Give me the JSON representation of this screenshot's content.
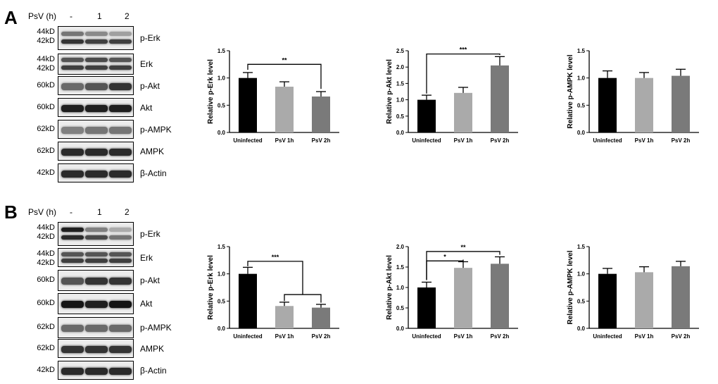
{
  "panels": [
    {
      "letter": "A",
      "header": {
        "label": "PsV (h)",
        "lanes": [
          "-",
          "1",
          "2"
        ]
      },
      "blots": [
        {
          "name": "p-Erk",
          "kd": [
            "44kD",
            "42kD"
          ],
          "double": true,
          "bands": [
            [
              0.55,
              0.85
            ],
            [
              0.45,
              0.8
            ],
            [
              0.35,
              0.8
            ]
          ]
        },
        {
          "name": "Erk",
          "kd": [
            "44kD",
            "42kD"
          ],
          "double": true,
          "bands": [
            [
              0.7,
              0.8
            ],
            [
              0.75,
              0.8
            ],
            [
              0.7,
              0.8
            ]
          ]
        },
        {
          "name": "p-Akt",
          "kd": [
            "60kD"
          ],
          "double": false,
          "bands": [
            [
              0.6
            ],
            [
              0.7
            ],
            [
              0.85
            ]
          ]
        },
        {
          "name": "Akt",
          "kd": [
            "60kD"
          ],
          "double": false,
          "bands": [
            [
              0.95
            ],
            [
              0.95
            ],
            [
              0.95
            ]
          ]
        },
        {
          "name": "p-AMPK",
          "kd": [
            "62kD"
          ],
          "double": false,
          "bands": [
            [
              0.5
            ],
            [
              0.55
            ],
            [
              0.55
            ]
          ]
        },
        {
          "name": "AMPK",
          "kd": [
            "62kD"
          ],
          "double": false,
          "bands": [
            [
              0.9
            ],
            [
              0.9
            ],
            [
              0.9
            ]
          ]
        },
        {
          "name": "β-Actin",
          "kd": [
            "42kD"
          ],
          "double": false,
          "bands": [
            [
              0.9
            ],
            [
              0.9
            ],
            [
              0.9
            ]
          ]
        }
      ]
    },
    {
      "letter": "B",
      "header": {
        "label": "PsV (h)",
        "lanes": [
          "-",
          "1",
          "2"
        ]
      },
      "blots": [
        {
          "name": "p-Erk",
          "kd": [
            "44kD",
            "42kD"
          ],
          "double": true,
          "bands": [
            [
              0.95,
              0.9
            ],
            [
              0.5,
              0.75
            ],
            [
              0.3,
              0.55
            ]
          ]
        },
        {
          "name": "Erk",
          "kd": [
            "44kD",
            "42kD"
          ],
          "double": true,
          "bands": [
            [
              0.7,
              0.8
            ],
            [
              0.7,
              0.8
            ],
            [
              0.7,
              0.8
            ]
          ]
        },
        {
          "name": "p-Akt",
          "kd": [
            "60kD"
          ],
          "double": false,
          "bands": [
            [
              0.7
            ],
            [
              0.85
            ],
            [
              0.85
            ]
          ]
        },
        {
          "name": "Akt",
          "kd": [
            "60kD"
          ],
          "double": false,
          "bands": [
            [
              1.0
            ],
            [
              0.95
            ],
            [
              1.0
            ]
          ]
        },
        {
          "name": "p-AMPK",
          "kd": [
            "62kD"
          ],
          "double": false,
          "bands": [
            [
              0.6
            ],
            [
              0.6
            ],
            [
              0.6
            ]
          ]
        },
        {
          "name": "AMPK",
          "kd": [
            "62kD"
          ],
          "double": false,
          "bands": [
            [
              0.85
            ],
            [
              0.85
            ],
            [
              0.85
            ]
          ]
        },
        {
          "name": "β-Actin",
          "kd": [
            "42kD"
          ],
          "double": false,
          "bands": [
            [
              0.9
            ],
            [
              0.9
            ],
            [
              0.9
            ]
          ]
        }
      ]
    }
  ],
  "chart_data": [
    {
      "id": "A-perk",
      "type": "bar",
      "categories": [
        "Uninfected",
        "PsV 1h",
        "PsV 2h"
      ],
      "values": [
        1.0,
        0.84,
        0.66
      ],
      "errors": [
        0.1,
        0.09,
        0.09
      ],
      "ylabel": "Relative p-Erk level",
      "ylim": [
        0,
        1.5
      ],
      "yticks": [
        "0.0",
        "0.5",
        "1.0",
        "1.5"
      ],
      "colors": [
        "#000000",
        "#aaaaaa",
        "#7a7a7a"
      ],
      "sig": [
        {
          "from": 0,
          "to": 2,
          "label": "**",
          "level": 1.25
        }
      ]
    },
    {
      "id": "A-pakt",
      "type": "bar",
      "categories": [
        "Uninfected",
        "PsV 1h",
        "PsV 2h"
      ],
      "values": [
        1.0,
        1.21,
        2.05
      ],
      "errors": [
        0.14,
        0.17,
        0.27
      ],
      "ylabel": "Relative p-Akt level",
      "ylim": [
        0,
        2.5
      ],
      "yticks": [
        "0.0",
        "0.5",
        "1.0",
        "1.5",
        "2.0",
        "2.5"
      ],
      "colors": [
        "#000000",
        "#aaaaaa",
        "#7a7a7a"
      ],
      "sig": [
        {
          "from": 0,
          "to": 2,
          "label": "***",
          "level": 2.4
        }
      ]
    },
    {
      "id": "A-pampk",
      "type": "bar",
      "categories": [
        "Uninfected",
        "PsV 1h",
        "PsV 2h"
      ],
      "values": [
        1.0,
        1.0,
        1.04
      ],
      "errors": [
        0.13,
        0.1,
        0.12
      ],
      "ylabel": "Relative p-AMPK level",
      "ylim": [
        0,
        1.5
      ],
      "yticks": [
        "0.0",
        "0.5",
        "1.0",
        "1.5"
      ],
      "colors": [
        "#000000",
        "#aaaaaa",
        "#7a7a7a"
      ],
      "sig": []
    },
    {
      "id": "B-perk",
      "type": "bar",
      "categories": [
        "Uninfected",
        "PsV 1h",
        "PsV 2h"
      ],
      "values": [
        1.0,
        0.41,
        0.38
      ],
      "errors": [
        0.12,
        0.07,
        0.06
      ],
      "ylabel": "Relative p-Erk level",
      "ylim": [
        0,
        1.5
      ],
      "yticks": [
        "0.0",
        "0.5",
        "1.0",
        "1.5"
      ],
      "colors": [
        "#000000",
        "#aaaaaa",
        "#7a7a7a"
      ],
      "sig": [
        {
          "from": 0,
          "to": "1-2",
          "label": "***",
          "level": 1.23
        }
      ]
    },
    {
      "id": "B-pakt",
      "type": "bar",
      "categories": [
        "Uninfected",
        "PsV 1h",
        "PsV 2h"
      ],
      "values": [
        1.0,
        1.48,
        1.58
      ],
      "errors": [
        0.13,
        0.15,
        0.17
      ],
      "ylabel": "Relative p-Akt level",
      "ylim": [
        0,
        2.0
      ],
      "yticks": [
        "0.0",
        "0.5",
        "1.0",
        "1.5",
        "2.0"
      ],
      "colors": [
        "#000000",
        "#aaaaaa",
        "#7a7a7a"
      ],
      "sig": [
        {
          "from": 0,
          "to": 1,
          "label": "*",
          "level": 1.65
        },
        {
          "from": 0,
          "to": 2,
          "label": "**",
          "level": 1.88
        }
      ]
    },
    {
      "id": "B-pampk",
      "type": "bar",
      "categories": [
        "Uninfected",
        "PsV 1h",
        "PsV 2h"
      ],
      "values": [
        1.0,
        1.03,
        1.14
      ],
      "errors": [
        0.1,
        0.1,
        0.09
      ],
      "ylabel": "Relative p-AMPK level",
      "ylim": [
        0,
        1.5
      ],
      "yticks": [
        "0.0",
        "0.5",
        "1.0",
        "1.5"
      ],
      "colors": [
        "#000000",
        "#aaaaaa",
        "#7a7a7a"
      ],
      "sig": []
    }
  ]
}
